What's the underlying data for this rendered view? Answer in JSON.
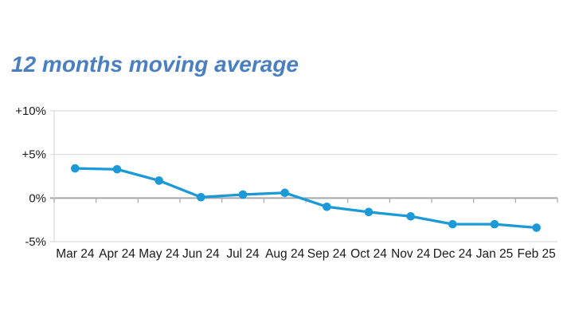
{
  "page": {
    "title": "12 months moving average"
  },
  "colors": {
    "title": "#4a7fc1",
    "line": "#1b9ad7",
    "grid": "#d9d9d9",
    "zero_axis": "#a6a6a6",
    "label": "#1a1a1a",
    "background": "#ffffff"
  },
  "chart_data": {
    "type": "line",
    "title": "12 months moving average",
    "categories": [
      "Mar 24",
      "Apr 24",
      "May 24",
      "Jun 24",
      "Jul 24",
      "Aug 24",
      "Sep 24",
      "Oct 24",
      "Nov 24",
      "Dec 24",
      "Jan 25",
      "Feb 25"
    ],
    "series": [
      {
        "name": "12 months moving average",
        "values": [
          3.4,
          3.3,
          2.0,
          0.1,
          0.4,
          0.6,
          -1.0,
          -1.6,
          -2.1,
          -3.0,
          -3.0,
          -3.4
        ]
      }
    ],
    "xlabel": "",
    "ylabel": "",
    "ylim": [
      -5,
      10
    ],
    "yticks": [
      {
        "value": 10,
        "label": "+10%"
      },
      {
        "value": 5,
        "label": "+5%"
      },
      {
        "value": 0,
        "label": "0%"
      },
      {
        "value": -5,
        "label": "-5%"
      }
    ],
    "grid": true,
    "legend": "none",
    "markers": true
  }
}
